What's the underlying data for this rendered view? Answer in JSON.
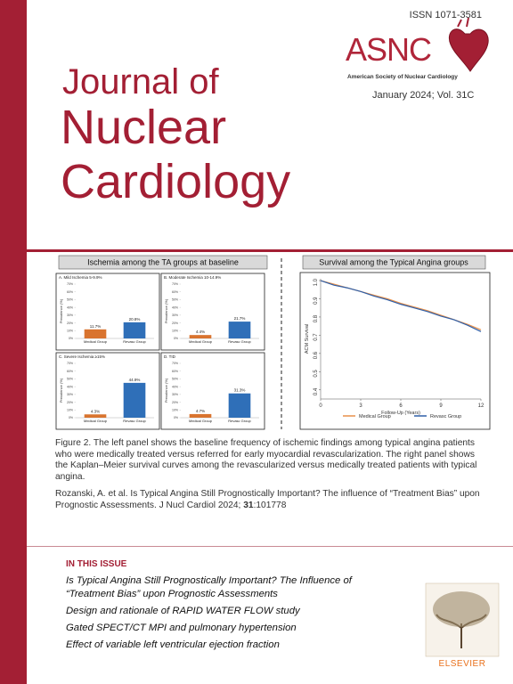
{
  "header": {
    "issn": "ISSN 1071-3581",
    "logo_text": "ASNC",
    "society_name": "American Society of Nuclear Cardiology",
    "issue": "January 2024; Vol. 31C",
    "journal_title": [
      "Journal of",
      "Nuclear",
      "Cardiology"
    ]
  },
  "figure": {
    "left_title": "Ischemia among the TA groups at baseline",
    "right_title": "Survival among the Typical Angina groups"
  },
  "chart_data": [
    {
      "type": "bar",
      "title": "A. Mild Ischemia 5-9.9%",
      "y_label": "Prevalence (%)",
      "categories": [
        "Medical Group",
        "Revasc Group"
      ],
      "values": [
        11.7,
        20.8
      ],
      "value_labels": [
        "11.7%",
        "20.8%"
      ],
      "colors": [
        "#d9742f",
        "#2f6fb8"
      ],
      "ylim": [
        0,
        70
      ],
      "yticks": [
        {
          "value": 0,
          "label": "0%"
        },
        {
          "value": 10,
          "label": "10%"
        },
        {
          "value": 20,
          "label": "20%"
        },
        {
          "value": 30,
          "label": "30%"
        },
        {
          "value": 40,
          "label": "40%"
        },
        {
          "value": 50,
          "label": "50%"
        },
        {
          "value": 60,
          "label": "60%"
        },
        {
          "value": 70,
          "label": "70%"
        }
      ]
    },
    {
      "type": "bar",
      "title": "B. Moderate Ischemia 10-14.9%",
      "y_label": "Prevalence (%)",
      "categories": [
        "Medical Group",
        "Revasc Group"
      ],
      "values": [
        4.4,
        21.7
      ],
      "value_labels": [
        "4.4%",
        "21.7%"
      ],
      "colors": [
        "#d9742f",
        "#2f6fb8"
      ],
      "ylim": [
        0,
        70
      ],
      "yticks": [
        {
          "value": 0,
          "label": "0%"
        },
        {
          "value": 10,
          "label": "10%"
        },
        {
          "value": 20,
          "label": "20%"
        },
        {
          "value": 30,
          "label": "30%"
        },
        {
          "value": 40,
          "label": "40%"
        },
        {
          "value": 50,
          "label": "50%"
        },
        {
          "value": 60,
          "label": "60%"
        },
        {
          "value": 70,
          "label": "70%"
        }
      ]
    },
    {
      "type": "bar",
      "title": "C. Severe Ischemia ≥15%",
      "y_label": "Prevalence (%)",
      "categories": [
        "Medical Group",
        "Revasc Group"
      ],
      "values": [
        4.3,
        44.9
      ],
      "value_labels": [
        "4.3%",
        "44.9%"
      ],
      "colors": [
        "#d9742f",
        "#2f6fb8"
      ],
      "ylim": [
        0,
        70
      ],
      "yticks": [
        {
          "value": 0,
          "label": "0%"
        },
        {
          "value": 10,
          "label": "10%"
        },
        {
          "value": 20,
          "label": "20%"
        },
        {
          "value": 30,
          "label": "30%"
        },
        {
          "value": 40,
          "label": "40%"
        },
        {
          "value": 50,
          "label": "50%"
        },
        {
          "value": 60,
          "label": "60%"
        },
        {
          "value": 70,
          "label": "70%"
        }
      ]
    },
    {
      "type": "bar",
      "title": "D. TID",
      "y_label": "Prevalence (%)",
      "categories": [
        "Medical Group",
        "Revasc Group"
      ],
      "values": [
        4.7,
        31.3
      ],
      "value_labels": [
        "4.7%",
        "31.3%"
      ],
      "colors": [
        "#d9742f",
        "#2f6fb8"
      ],
      "ylim": [
        0,
        70
      ],
      "yticks": [
        {
          "value": 0,
          "label": "0%"
        },
        {
          "value": 10,
          "label": "10%"
        },
        {
          "value": 20,
          "label": "20%"
        },
        {
          "value": 30,
          "label": "30%"
        },
        {
          "value": 40,
          "label": "40%"
        },
        {
          "value": 50,
          "label": "50%"
        },
        {
          "value": 60,
          "label": "60%"
        },
        {
          "value": 70,
          "label": "70%"
        }
      ]
    },
    {
      "type": "line",
      "x_label": "Follow-Up (Years)",
      "y_label": "ACM Survival",
      "x": [
        0,
        1,
        2,
        3,
        4,
        5,
        6,
        7,
        8,
        9,
        10,
        11,
        12
      ],
      "series": [
        {
          "name": "Medical Group",
          "color": "#e8914a",
          "values": [
            1.0,
            0.98,
            0.96,
            0.94,
            0.92,
            0.9,
            0.875,
            0.855,
            0.835,
            0.81,
            0.785,
            0.76,
            0.73
          ]
        },
        {
          "name": "Revasc Group",
          "color": "#2f5fa8",
          "values": [
            1.0,
            0.975,
            0.96,
            0.94,
            0.915,
            0.895,
            0.87,
            0.85,
            0.83,
            0.805,
            0.785,
            0.755,
            0.72
          ]
        }
      ],
      "xlim": [
        0,
        12
      ],
      "xticks": [
        0,
        3,
        6,
        9,
        12
      ],
      "ylim": [
        0.35,
        1.01
      ],
      "yticks": [
        {
          "value": 1,
          "label": "1.0"
        },
        0.9,
        0.8,
        0.7,
        0.6,
        0.5,
        0.4
      ]
    }
  ],
  "caption": "Figure 2. The left panel shows the baseline frequency of ischemic findings among typical angina patients who were medically treated versus referred for early myocardial revascularization. The right panel shows the Kaplan–Meier survival curves among the revascularized versus medically treated patients with typical angina.",
  "citation": {
    "text": "Rozanski, A. et al. Is Typical Angina Still Prognostically Important? The influence of “Treatment Bias” upon Prognostic Assessments. J Nucl Cardiol 2024;",
    "volume": "31",
    "article": ":101778"
  },
  "in_this_issue": {
    "heading": "IN THIS ISSUE",
    "items": [
      "Is Typical Angina Still Prognostically Important? The Influence of “Treatment Bias” upon Prognostic Assessments",
      "Design and rationale of RAPID WATER FLOW study",
      "Gated SPECT/CT MPI and pulmonary hypertension",
      "Effect of variable left ventricular ejection fraction"
    ]
  },
  "publisher": "ELSEVIER"
}
